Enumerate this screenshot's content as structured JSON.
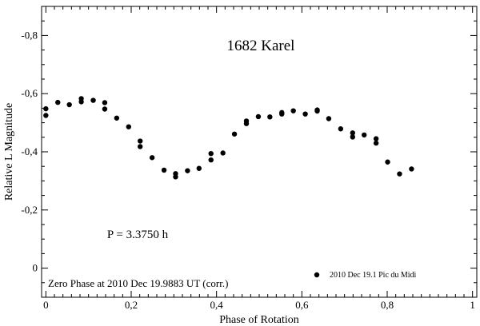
{
  "chart_data": {
    "type": "scatter",
    "title": "1682 Karel",
    "xlabel": "Phase of Rotation",
    "ylabel": "Relative L Magnitude",
    "xlim": [
      -0.01,
      1.01
    ],
    "ylim": [
      0.1,
      -0.9
    ],
    "y_inverted": true,
    "x_ticks": [
      0,
      0.2,
      0.4,
      0.6,
      0.8,
      1
    ],
    "x_tick_labels": [
      "0",
      "0,2",
      "0,4",
      "0,6",
      "0,8",
      "1"
    ],
    "y_ticks": [
      0,
      -0.2,
      -0.4,
      -0.6,
      -0.8
    ],
    "y_tick_labels": [
      "0",
      "-0,2",
      "-0,4",
      "-0,6",
      "-0,8"
    ],
    "grid": false,
    "legend_position": "bottom-right",
    "period_label": "P = 3.3750 h",
    "zero_phase_label": "Zero Phase at 2010 Dec 19.9883 UT (corr.)",
    "marker_color": "#000000",
    "series": [
      {
        "name": "2010 Dec 19.1 Pic du Midi",
        "x": [
          0.0,
          0.0,
          0.028,
          0.055,
          0.083,
          0.083,
          0.111,
          0.138,
          0.138,
          0.166,
          0.194,
          0.221,
          0.221,
          0.249,
          0.277,
          0.304,
          0.304,
          0.332,
          0.359,
          0.387,
          0.387,
          0.415,
          0.442,
          0.47,
          0.47,
          0.498,
          0.525,
          0.553,
          0.553,
          0.58,
          0.608,
          0.636,
          0.636,
          0.663,
          0.691,
          0.719,
          0.719,
          0.746,
          0.774,
          0.774,
          0.801,
          0.829,
          0.857
        ],
        "y": [
          -0.548,
          -0.525,
          -0.57,
          -0.562,
          -0.583,
          -0.572,
          -0.577,
          -0.569,
          -0.547,
          -0.516,
          -0.486,
          -0.437,
          -0.418,
          -0.38,
          -0.337,
          -0.325,
          -0.314,
          -0.335,
          -0.343,
          -0.394,
          -0.372,
          -0.396,
          -0.461,
          -0.506,
          -0.497,
          -0.521,
          -0.52,
          -0.535,
          -0.53,
          -0.541,
          -0.53,
          -0.544,
          -0.54,
          -0.514,
          -0.479,
          -0.465,
          -0.451,
          -0.458,
          -0.445,
          -0.43,
          -0.365,
          -0.324,
          -0.341
        ]
      }
    ]
  }
}
